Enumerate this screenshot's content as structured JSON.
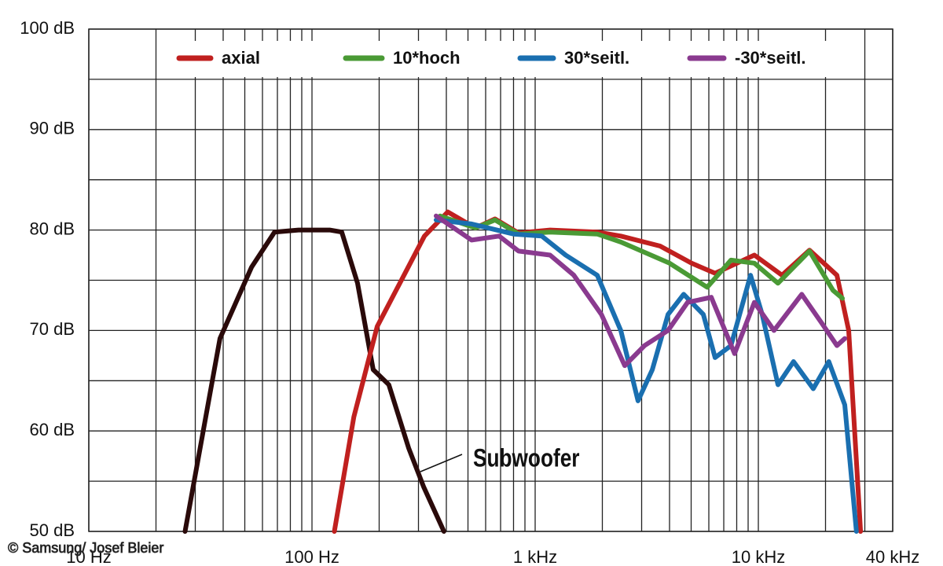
{
  "chart_data": {
    "type": "line",
    "log_x": true,
    "grid": true,
    "annotation": "Subwoofer",
    "credit": "© Samsung/ Josef Bleier",
    "xlim": [
      10,
      40000
    ],
    "xticks": [
      {
        "value": 10,
        "label": "10 Hz"
      },
      {
        "value": 100,
        "label": "100 Hz"
      },
      {
        "value": 1000,
        "label": "1 kHz"
      },
      {
        "value": 10000,
        "label": "10 kHz"
      },
      {
        "value": 40000,
        "label": "40 kHz"
      }
    ],
    "ylim": [
      50,
      100
    ],
    "yticks": [
      {
        "value": 50,
        "label": "50 dB"
      },
      {
        "value": 60,
        "label": "60 dB"
      },
      {
        "value": 70,
        "label": "70 dB"
      },
      {
        "value": 80,
        "label": "80 dB"
      },
      {
        "value": 90,
        "label": "90 dB"
      },
      {
        "value": 100,
        "label": "100 dB"
      }
    ],
    "series": [
      {
        "name": "Subwoofer",
        "color": "#2a0a0a",
        "legend": false,
        "x": [
          27,
          38.7,
          53.6,
          68,
          87,
          120,
          136,
          160,
          188,
          221,
          271,
          317,
          390
        ],
        "values": [
          50,
          69.2,
          76.3,
          79.8,
          80,
          80,
          79.8,
          74.7,
          66.1,
          64.6,
          58.3,
          54.4,
          50
        ]
      },
      {
        "name": "axial",
        "color": "#c0201f",
        "x": [
          126,
          154,
          196,
          319,
          406,
          540,
          661,
          843,
          1166,
          1897,
          2420,
          3630,
          5020,
          6400,
          9600,
          12760,
          16950,
          22500,
          25400,
          28700
        ],
        "values": [
          50,
          61.4,
          70.4,
          79.4,
          81.8,
          80.2,
          81.1,
          79.7,
          80,
          79.8,
          79.4,
          78.4,
          76.7,
          75.7,
          77.5,
          75.5,
          78,
          75.5,
          70,
          50
        ]
      },
      {
        "name": "10*hoch",
        "color": "#4a9a35",
        "x": [
          375,
          540,
          661,
          843,
          1166,
          1897,
          2420,
          4000,
          5900,
          7540,
          9600,
          12250,
          16950,
          21600,
          23800
        ],
        "values": [
          81.4,
          80.2,
          81,
          79.6,
          79.8,
          79.6,
          78.8,
          76.7,
          74.3,
          77,
          76.7,
          74.7,
          77.9,
          74,
          73.2
        ]
      },
      {
        "name": "30*seitl.",
        "color": "#1a6fb0",
        "x": [
          360,
          519,
          800,
          1070,
          1370,
          1897,
          2420,
          2890,
          3350,
          3940,
          4630,
          5670,
          6400,
          7540,
          9230,
          10400,
          12250,
          14380,
          17620,
          20700,
          24400,
          27500
        ],
        "values": [
          81,
          80.6,
          79.6,
          79.4,
          77.5,
          75.5,
          70,
          63,
          66.1,
          71.6,
          73.6,
          71.6,
          67.3,
          68.5,
          75.5,
          71.6,
          64.6,
          66.9,
          64.2,
          66.9,
          62.6,
          50
        ]
      },
      {
        "name": "-30*seitl.",
        "color": "#8a3a8f",
        "x": [
          360,
          519,
          689,
          843,
          1166,
          1490,
          1980,
          2520,
          3090,
          3940,
          4820,
          6150,
          7830,
          9600,
          11750,
          15640,
          19150,
          22500,
          24400
        ],
        "values": [
          81.4,
          79,
          79.4,
          77.9,
          77.5,
          75.5,
          71.6,
          66.5,
          68.5,
          70,
          72.8,
          73.3,
          67.7,
          72.8,
          70,
          73.6,
          70.8,
          68.5,
          69.2
        ]
      }
    ]
  }
}
